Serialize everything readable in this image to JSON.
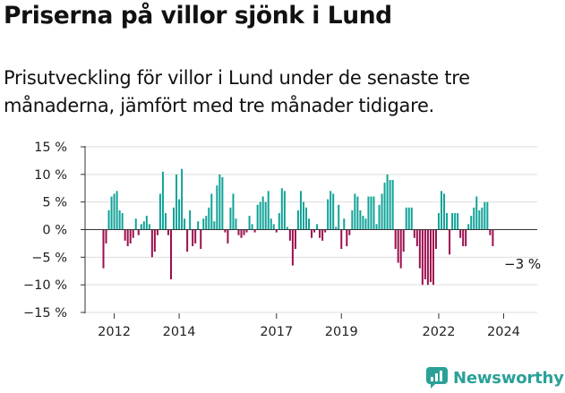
{
  "title": "Priserna på villor sjönk i Lund",
  "subtitle": "Prisutveckling för villor i Lund under de senaste tre månaderna, jämfört med tre månader tidigare.",
  "logo_text": "Newsworthy",
  "colors": {
    "positive": "#11a398",
    "negative": "#9c0f4e",
    "axis": "#333333",
    "grid": "#dddddd"
  },
  "chart_data": {
    "type": "bar",
    "title": "",
    "xlabel": "",
    "ylabel": "",
    "ylim": [
      -15,
      15
    ],
    "y_ticks": [
      15,
      10,
      5,
      0,
      -5,
      -10,
      -15
    ],
    "y_tick_labels": [
      "15 %",
      "10 %",
      "5 %",
      "0 %",
      "−5 %",
      "−10 %",
      "−15 %"
    ],
    "x_ticks": [
      2012,
      2014,
      2017,
      2019,
      2022,
      2024
    ],
    "x_tick_labels": [
      "2012",
      "2014",
      "2017",
      "2019",
      "2022",
      "2024"
    ],
    "start": "2011-09",
    "frequency": "monthly",
    "series": [
      {
        "values": [
          -7,
          -2.5,
          3.5,
          6,
          6.5,
          7,
          3.5,
          3,
          -2,
          -3,
          -2.5,
          -1.5,
          2,
          -1,
          1,
          1.5,
          2.5,
          1,
          -5,
          -4,
          -1,
          6.5,
          10.5,
          3,
          -1,
          -9,
          4,
          10,
          5.5,
          11,
          2,
          -4,
          3.5,
          -3,
          -2.5,
          1.5,
          -3.5,
          2,
          2.5,
          4,
          6.5,
          1.5,
          8,
          10,
          9.5,
          -0.5,
          -2.5,
          4,
          6.5,
          2,
          -1,
          -1.5,
          -1,
          -0.5,
          2.5,
          1,
          -0.5,
          4.5,
          5,
          6,
          5,
          7,
          2,
          1,
          -0.5,
          3,
          7.5,
          7,
          0.5,
          -2,
          -6.5,
          -3.5,
          3.5,
          7,
          5,
          4,
          2,
          -1.5,
          -0.5,
          1,
          -1.5,
          -2,
          -0.5,
          5.5,
          7,
          6.5,
          0.5,
          4.5,
          -3.5,
          2,
          -3,
          -1,
          3.5,
          6.5,
          6,
          3.5,
          2.5,
          2,
          6,
          6,
          6,
          1,
          4.5,
          6.5,
          8.5,
          10,
          9,
          9,
          -3.5,
          -6,
          -7,
          -4,
          4,
          4,
          4,
          -1.5,
          -3,
          -7,
          -10,
          -9,
          -10,
          -9.5,
          -10,
          -3.5,
          3,
          7,
          6.5,
          3,
          -4.5,
          3,
          3,
          3,
          -1.5,
          -3,
          -3,
          1,
          2.5,
          4,
          6,
          3.5,
          4,
          5,
          5,
          -1,
          -3
        ]
      }
    ],
    "annotation": "−3 %"
  }
}
